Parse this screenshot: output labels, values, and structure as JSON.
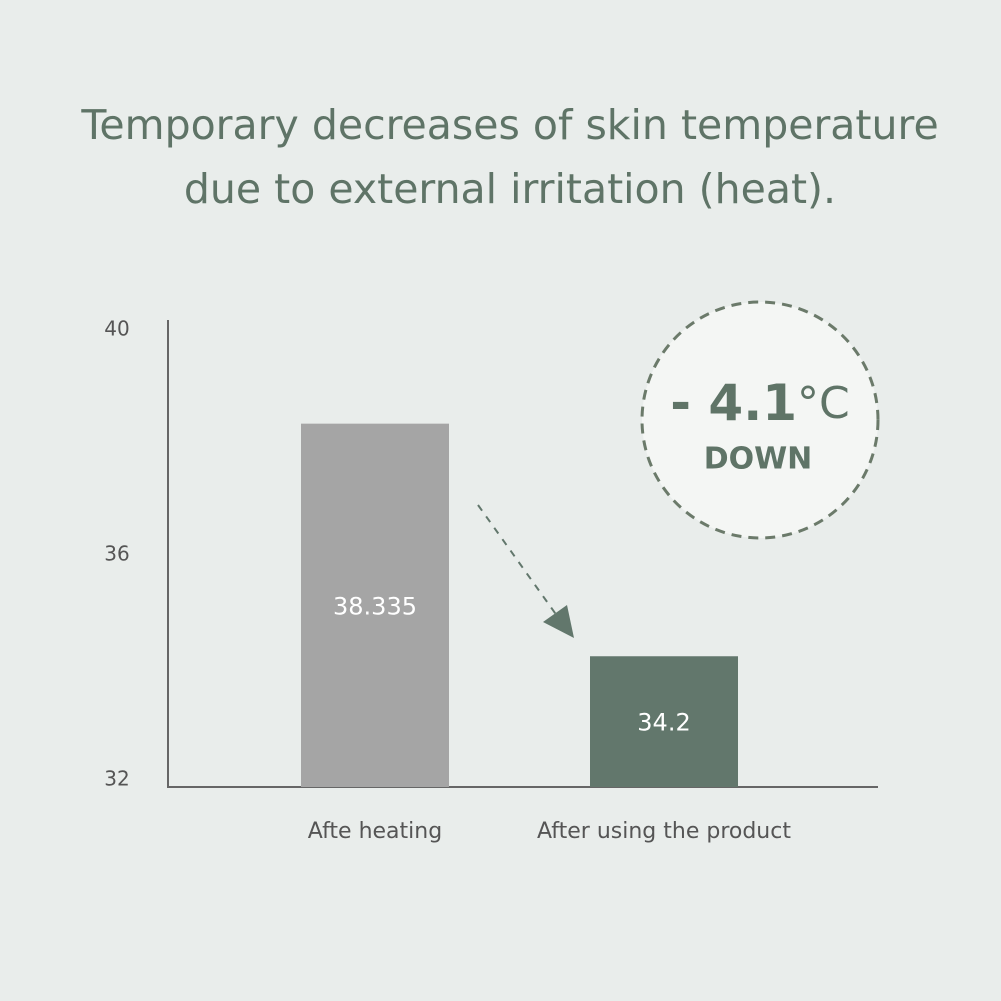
{
  "chart_data": {
    "type": "bar",
    "title": [
      "Temporary decreases of skin temperature",
      "due to external irritation (heat)."
    ],
    "categories": [
      "Afte heating",
      "After using the product"
    ],
    "values": [
      38.335,
      34.2
    ],
    "colors": [
      "#a5a5a5",
      "#62776c"
    ],
    "ylim": [
      32,
      40
    ],
    "yticks": [
      32,
      36,
      40
    ],
    "grid": false,
    "badge": {
      "value": "- 4.1",
      "unit": "°C",
      "label": "DOWN"
    }
  }
}
